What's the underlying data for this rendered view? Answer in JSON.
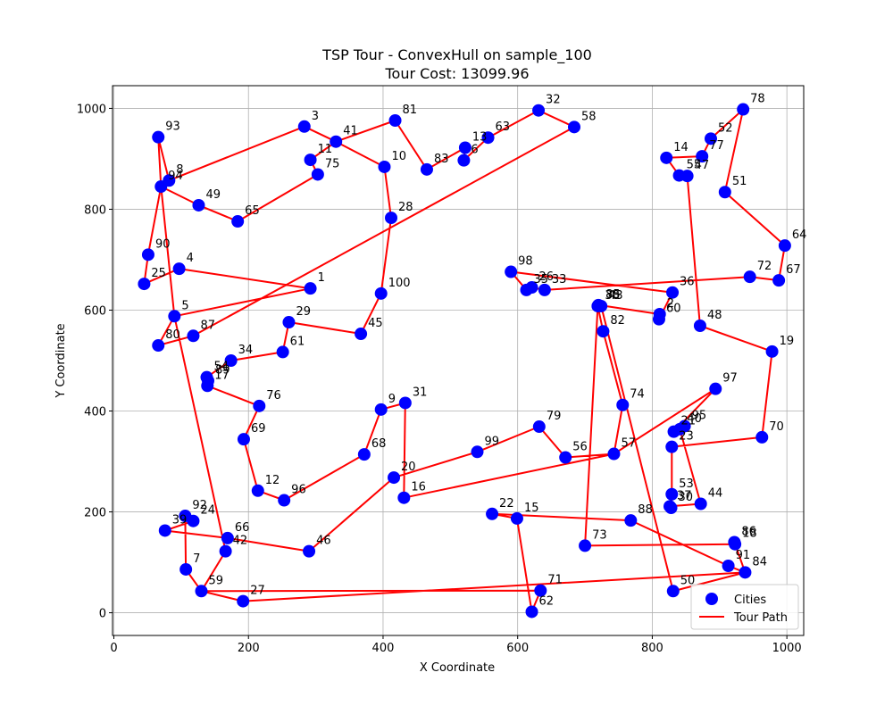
{
  "chart_data": {
    "type": "scatter",
    "title_line1": "TSP Tour - ConvexHull on sample_100",
    "title_line2": "Tour Cost: 13099.96",
    "xlabel": "X Coordinate",
    "ylabel": "Y Coordinate",
    "xlim": [
      -2,
      1025
    ],
    "ylim": [
      -45,
      1045
    ],
    "xticks": [
      0,
      200,
      400,
      600,
      800,
      1000
    ],
    "yticks": [
      0,
      200,
      400,
      600,
      800,
      1000
    ],
    "grid": true,
    "legend_position": "lower-right",
    "legend": [
      {
        "label": "Cities",
        "kind": "marker",
        "color": "#0000ff"
      },
      {
        "label": "Tour Path",
        "kind": "line",
        "color": "#ff0000"
      }
    ],
    "colors": {
      "cities": "#0000ff",
      "tour": "#ff0000"
    },
    "cities": [
      {
        "id": "1",
        "x": 292,
        "y": 643
      },
      {
        "id": "2",
        "x": 811,
        "y": 592
      },
      {
        "id": "3",
        "x": 283,
        "y": 964
      },
      {
        "id": "4",
        "x": 97,
        "y": 682
      },
      {
        "id": "5",
        "x": 90,
        "y": 588
      },
      {
        "id": "6",
        "x": 520,
        "y": 897
      },
      {
        "id": "7",
        "x": 107,
        "y": 86
      },
      {
        "id": "8",
        "x": 82,
        "y": 857
      },
      {
        "id": "9",
        "x": 397,
        "y": 403
      },
      {
        "id": "10",
        "x": 402,
        "y": 884
      },
      {
        "id": "11",
        "x": 292,
        "y": 898
      },
      {
        "id": "12",
        "x": 214,
        "y": 242
      },
      {
        "id": "13",
        "x": 522,
        "y": 922
      },
      {
        "id": "14",
        "x": 821,
        "y": 902
      },
      {
        "id": "15",
        "x": 599,
        "y": 187
      },
      {
        "id": "16",
        "x": 431,
        "y": 228
      },
      {
        "id": "17",
        "x": 139,
        "y": 450
      },
      {
        "id": "18",
        "x": 923,
        "y": 136
      },
      {
        "id": "19",
        "x": 978,
        "y": 518
      },
      {
        "id": "20",
        "x": 416,
        "y": 268
      },
      {
        "id": "21",
        "x": 832,
        "y": 359
      },
      {
        "id": "22",
        "x": 562,
        "y": 196
      },
      {
        "id": "23",
        "x": 829,
        "y": 329
      },
      {
        "id": "24",
        "x": 118,
        "y": 182
      },
      {
        "id": "25",
        "x": 45,
        "y": 652
      },
      {
        "id": "26",
        "x": 621,
        "y": 645
      },
      {
        "id": "27",
        "x": 192,
        "y": 23
      },
      {
        "id": "28",
        "x": 412,
        "y": 783
      },
      {
        "id": "29",
        "x": 260,
        "y": 576
      },
      {
        "id": "30",
        "x": 828,
        "y": 208
      },
      {
        "id": "31",
        "x": 433,
        "y": 416
      },
      {
        "id": "32",
        "x": 631,
        "y": 996
      },
      {
        "id": "33",
        "x": 640,
        "y": 640
      },
      {
        "id": "34",
        "x": 174,
        "y": 500
      },
      {
        "id": "35",
        "x": 613,
        "y": 640
      },
      {
        "id": "36",
        "x": 830,
        "y": 635
      },
      {
        "id": "37",
        "x": 826,
        "y": 211
      },
      {
        "id": "38",
        "x": 719,
        "y": 608
      },
      {
        "id": "39",
        "x": 76,
        "y": 163
      },
      {
        "id": "40",
        "x": 841,
        "y": 364
      },
      {
        "id": "41",
        "x": 330,
        "y": 934
      },
      {
        "id": "42",
        "x": 166,
        "y": 122
      },
      {
        "id": "43",
        "x": 724,
        "y": 608
      },
      {
        "id": "44",
        "x": 872,
        "y": 216
      },
      {
        "id": "45",
        "x": 367,
        "y": 553
      },
      {
        "id": "46",
        "x": 290,
        "y": 122
      },
      {
        "id": "47",
        "x": 852,
        "y": 866
      },
      {
        "id": "48",
        "x": 871,
        "y": 569
      },
      {
        "id": "49",
        "x": 126,
        "y": 808
      },
      {
        "id": "50",
        "x": 831,
        "y": 43
      },
      {
        "id": "51",
        "x": 908,
        "y": 834
      },
      {
        "id": "52",
        "x": 887,
        "y": 940
      },
      {
        "id": "53",
        "x": 829,
        "y": 235
      },
      {
        "id": "54",
        "x": 138,
        "y": 467
      },
      {
        "id": "55",
        "x": 840,
        "y": 867
      },
      {
        "id": "56",
        "x": 671,
        "y": 308
      },
      {
        "id": "57",
        "x": 743,
        "y": 315
      },
      {
        "id": "58",
        "x": 684,
        "y": 963
      },
      {
        "id": "59",
        "x": 130,
        "y": 43
      },
      {
        "id": "60",
        "x": 810,
        "y": 582
      },
      {
        "id": "61",
        "x": 251,
        "y": 517
      },
      {
        "id": "62",
        "x": 621,
        "y": 2
      },
      {
        "id": "63",
        "x": 556,
        "y": 942
      },
      {
        "id": "64",
        "x": 997,
        "y": 728
      },
      {
        "id": "65",
        "x": 184,
        "y": 776
      },
      {
        "id": "66",
        "x": 169,
        "y": 148
      },
      {
        "id": "67",
        "x": 988,
        "y": 659
      },
      {
        "id": "68",
        "x": 372,
        "y": 314
      },
      {
        "id": "69",
        "x": 193,
        "y": 344
      },
      {
        "id": "70",
        "x": 963,
        "y": 348
      },
      {
        "id": "71",
        "x": 634,
        "y": 44
      },
      {
        "id": "72",
        "x": 945,
        "y": 666
      },
      {
        "id": "73",
        "x": 700,
        "y": 133
      },
      {
        "id": "74",
        "x": 756,
        "y": 412
      },
      {
        "id": "75",
        "x": 303,
        "y": 869
      },
      {
        "id": "76",
        "x": 216,
        "y": 410
      },
      {
        "id": "77",
        "x": 874,
        "y": 905
      },
      {
        "id": "78",
        "x": 935,
        "y": 998
      },
      {
        "id": "79",
        "x": 632,
        "y": 369
      },
      {
        "id": "80",
        "x": 66,
        "y": 530
      },
      {
        "id": "81",
        "x": 418,
        "y": 976
      },
      {
        "id": "82",
        "x": 727,
        "y": 558
      },
      {
        "id": "83",
        "x": 465,
        "y": 879
      },
      {
        "id": "84",
        "x": 938,
        "y": 80
      },
      {
        "id": "85",
        "x": 720,
        "y": 610
      },
      {
        "id": "86",
        "x": 922,
        "y": 140
      },
      {
        "id": "87",
        "x": 118,
        "y": 549
      },
      {
        "id": "88",
        "x": 768,
        "y": 183
      },
      {
        "id": "89",
        "x": 140,
        "y": 460
      },
      {
        "id": "90",
        "x": 51,
        "y": 710
      },
      {
        "id": "91",
        "x": 913,
        "y": 93
      },
      {
        "id": "92",
        "x": 106,
        "y": 192
      },
      {
        "id": "93",
        "x": 66,
        "y": 943
      },
      {
        "id": "94",
        "x": 70,
        "y": 845
      },
      {
        "id": "95",
        "x": 848,
        "y": 370
      },
      {
        "id": "96",
        "x": 253,
        "y": 223
      },
      {
        "id": "97",
        "x": 894,
        "y": 444
      },
      {
        "id": "98",
        "x": 590,
        "y": 676
      },
      {
        "id": "99",
        "x": 540,
        "y": 319
      },
      {
        "id": "100",
        "x": 397,
        "y": 633
      }
    ],
    "tour": [
      "1",
      "4",
      "25",
      "90",
      "94",
      "93",
      "8",
      "3",
      "41",
      "11",
      "75",
      "65",
      "49",
      "94",
      "5",
      "80",
      "87",
      "58",
      "32",
      "63",
      "6",
      "13",
      "83",
      "81",
      "41",
      "10",
      "28",
      "100",
      "45",
      "29",
      "61",
      "34",
      "54",
      "89",
      "17",
      "76",
      "69",
      "12",
      "96",
      "68",
      "9",
      "31",
      "16",
      "57",
      "74",
      "82",
      "38",
      "73",
      "18",
      "86",
      "84",
      "50",
      "43",
      "85",
      "2",
      "60",
      "36",
      "98",
      "35",
      "26",
      "33",
      "72",
      "67",
      "64",
      "51",
      "78",
      "52",
      "77",
      "14",
      "55",
      "47",
      "48",
      "19",
      "70",
      "23",
      "53",
      "30",
      "37",
      "44",
      "40",
      "95",
      "21",
      "97",
      "57",
      "56",
      "79",
      "99",
      "20",
      "46",
      "66",
      "39",
      "24",
      "92",
      "7",
      "59",
      "27",
      "84",
      "91",
      "88",
      "22",
      "15",
      "62",
      "71",
      "59",
      "42",
      "5",
      "1"
    ]
  }
}
